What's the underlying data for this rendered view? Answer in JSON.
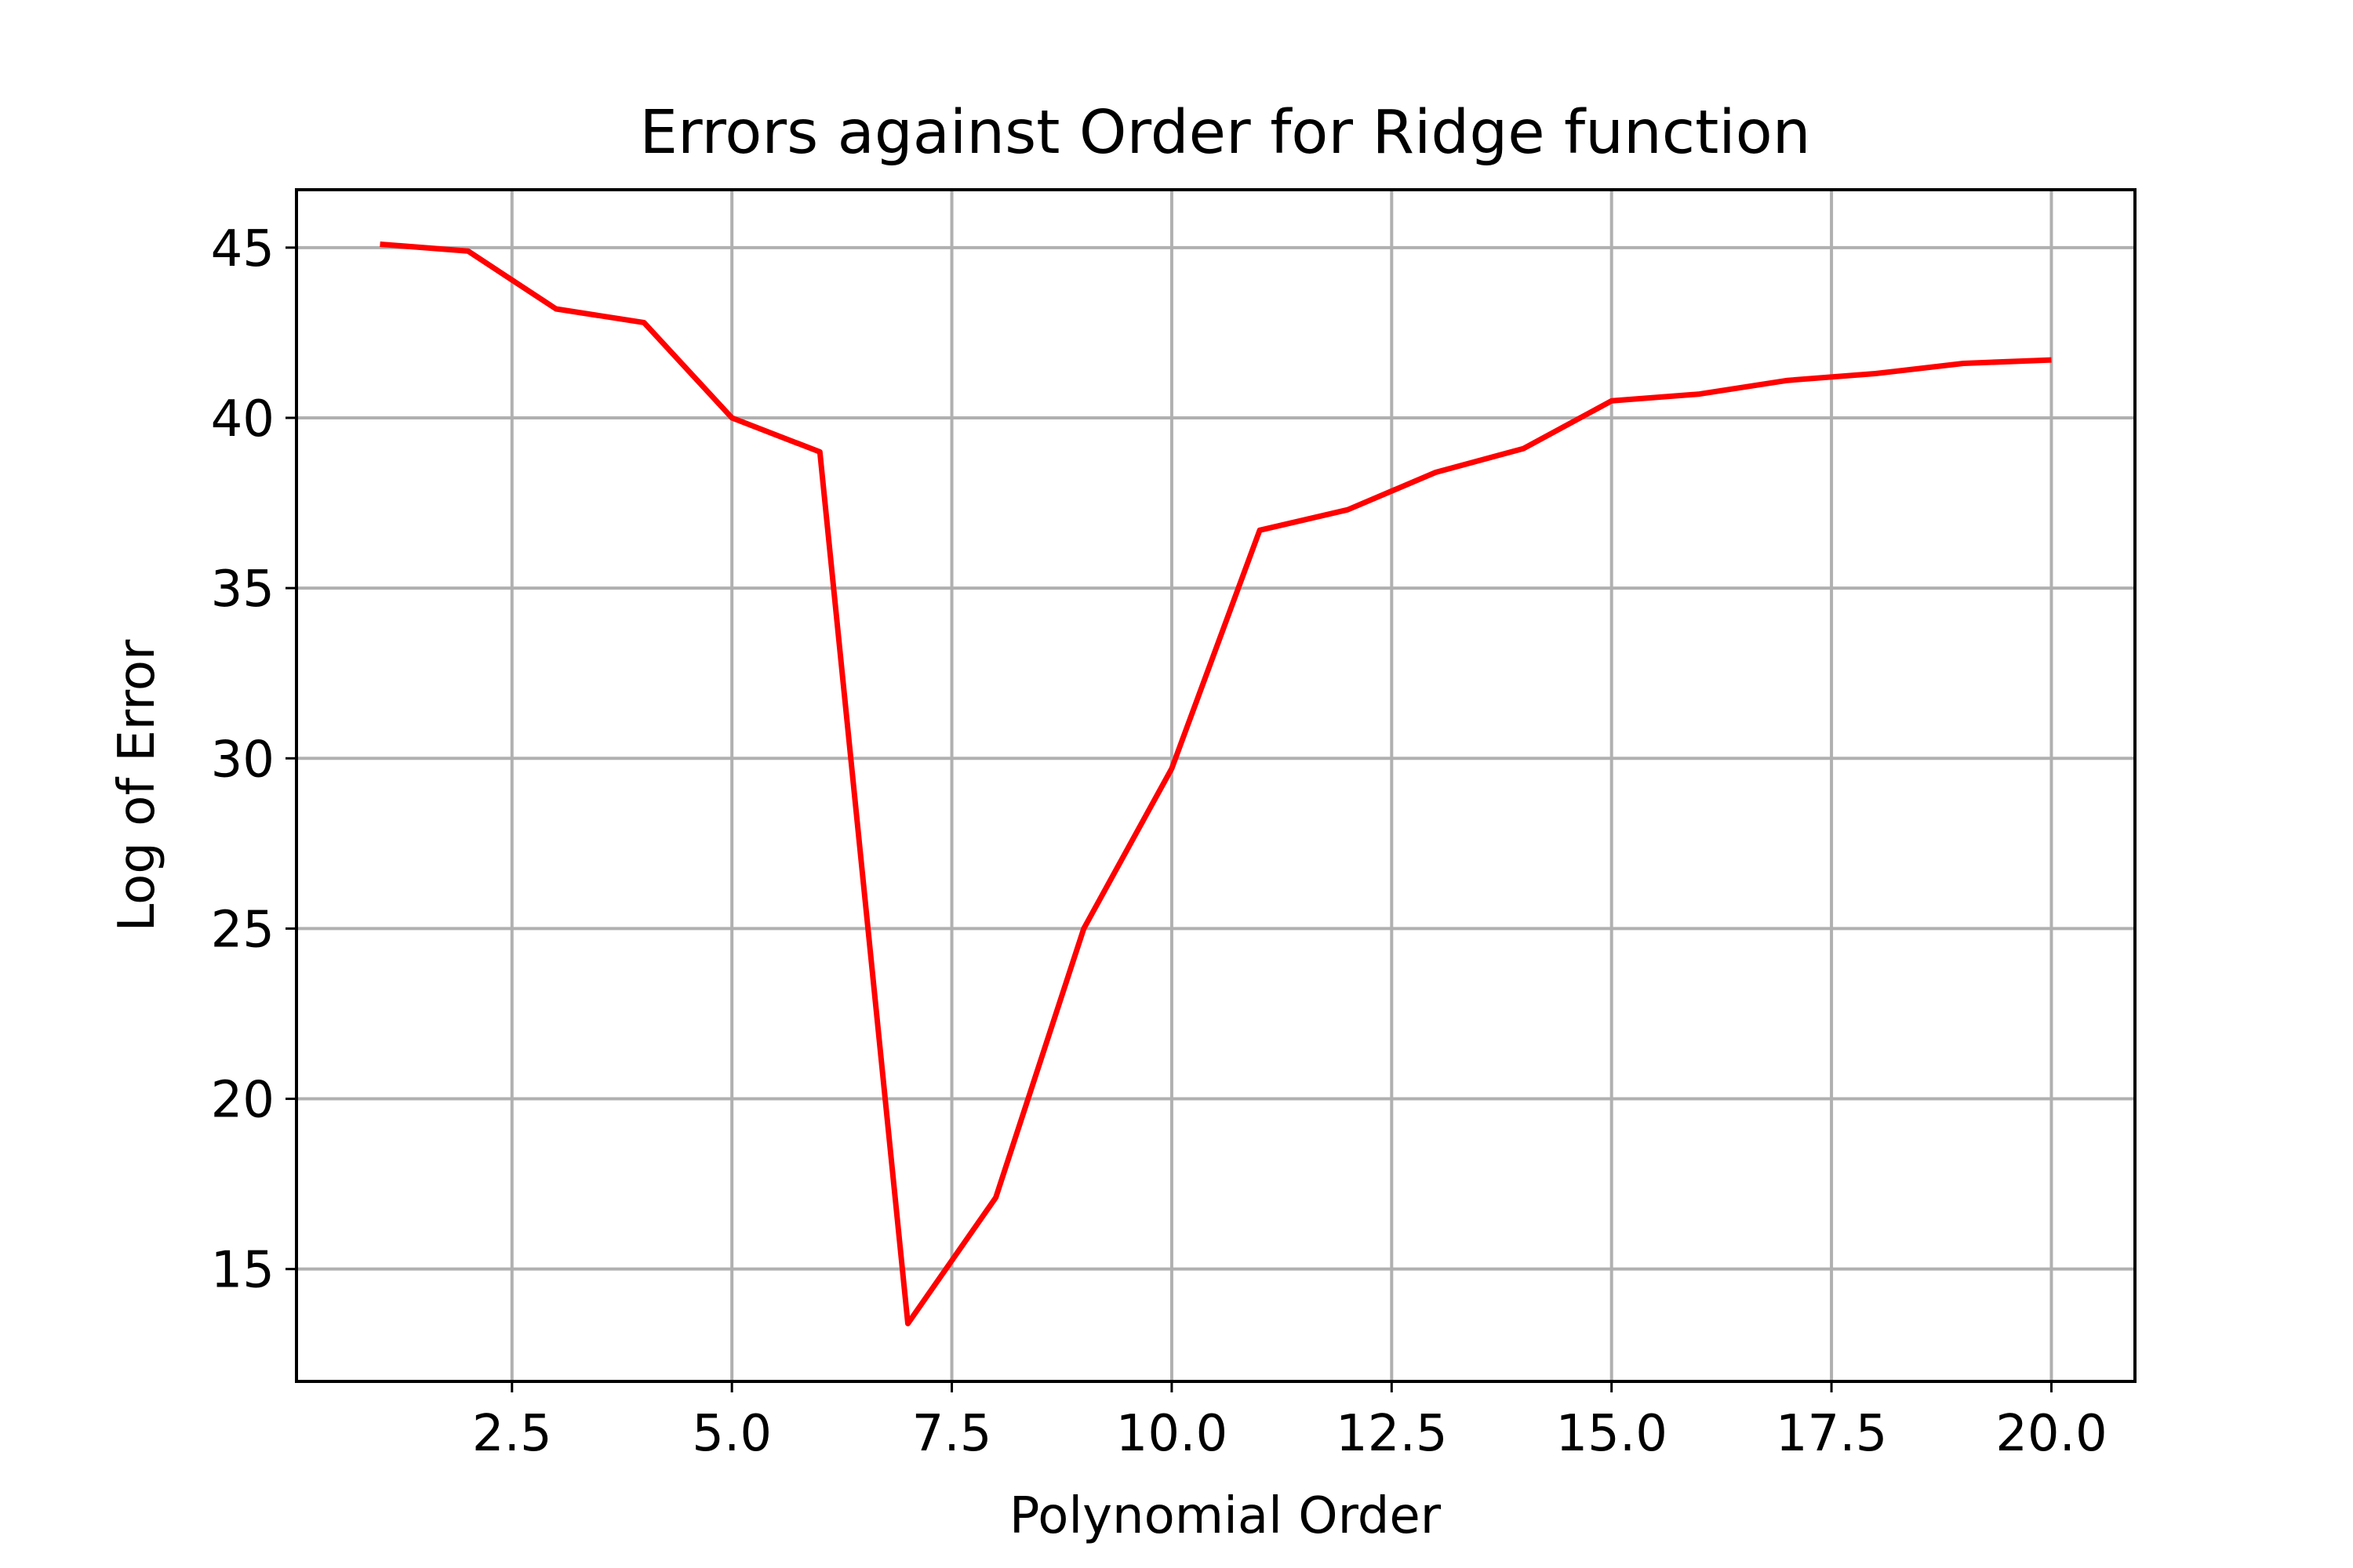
{
  "chart_data": {
    "type": "line",
    "title": "Errors against Order for Ridge function",
    "xlabel": "Polynomial Order",
    "ylabel": "Log of Error",
    "x_ticks": [
      2.5,
      5.0,
      7.5,
      10.0,
      12.5,
      15.0,
      17.5,
      20.0
    ],
    "x_tick_labels": [
      "2.5",
      "5.0",
      "7.5",
      "10.0",
      "12.5",
      "15.0",
      "17.5",
      "20.0"
    ],
    "y_ticks": [
      15,
      20,
      25,
      30,
      35,
      40,
      45
    ],
    "y_tick_labels": [
      "15",
      "20",
      "25",
      "30",
      "35",
      "40",
      "45"
    ],
    "xlim": [
      0.05,
      20.95
    ],
    "ylim": [
      11.7,
      46.7
    ],
    "grid": true,
    "series": [
      {
        "color": "#ff0000",
        "x": [
          1,
          2,
          3,
          4,
          5,
          6,
          7,
          8,
          9,
          10,
          11,
          12,
          13,
          14,
          15,
          16,
          17,
          18,
          19,
          20
        ],
        "values": [
          45.1,
          44.9,
          43.2,
          42.8,
          40.0,
          39.0,
          13.4,
          17.1,
          25.0,
          29.7,
          36.7,
          37.3,
          38.4,
          39.1,
          40.5,
          40.7,
          41.1,
          41.3,
          41.6,
          41.7
        ]
      }
    ]
  }
}
